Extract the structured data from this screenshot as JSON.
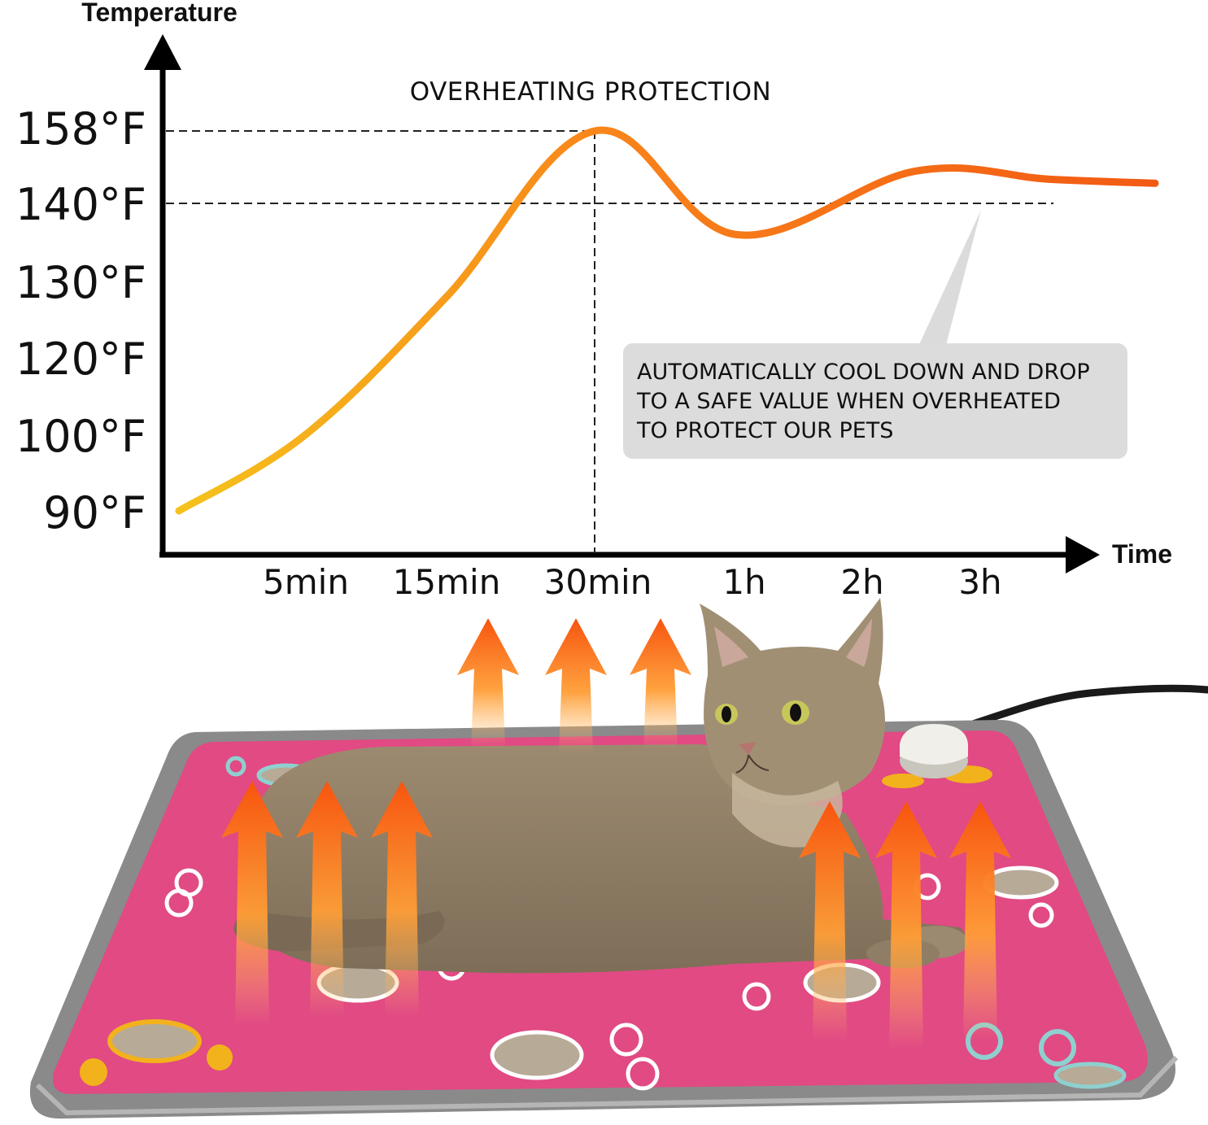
{
  "chart_data": {
    "type": "line",
    "title": "OVERHEATING PROTECTION",
    "xlabel": "Time",
    "ylabel": "Temperature",
    "y_ticks": [
      "158°F",
      "140°F",
      "130°F",
      "120°F",
      "100°F",
      "90°F"
    ],
    "x_ticks": [
      "5min",
      "15min",
      "30min",
      "1h",
      "2h",
      "3h"
    ],
    "series": [
      {
        "color_start": "#f5c21c",
        "color_end": "#f25a13",
        "points": [
          {
            "x": "0min",
            "y": 90
          },
          {
            "x": "5min",
            "y": 100
          },
          {
            "x": "15min",
            "y": 128
          },
          {
            "x": "30min",
            "y": 158
          },
          {
            "x": "1h",
            "y": 136
          },
          {
            "x": "2h",
            "y": 148
          },
          {
            "x": "3h",
            "y": 146
          },
          {
            "x": "end",
            "y": 145
          }
        ]
      }
    ],
    "reference_lines": [
      {
        "axis": "y",
        "value": "158°F",
        "style": "dashed"
      },
      {
        "axis": "y",
        "value": "140°F",
        "style": "dashed"
      },
      {
        "axis": "x",
        "value": "30min",
        "style": "dashed"
      }
    ],
    "grid": false,
    "legend": "none"
  },
  "callout": {
    "lines": [
      "AUTOMATICALLY COOL DOWN AND DROP",
      "TO A SAFE VALUE WHEN  OVERHEATED",
      "TO PROTECT OUR PETS"
    ]
  },
  "illustration": {
    "mat_color": "#e14a83",
    "border_color": "#8a8a8a",
    "arrow_color_top": "#f7540e",
    "arrow_color_bottom": "#ffc070"
  }
}
